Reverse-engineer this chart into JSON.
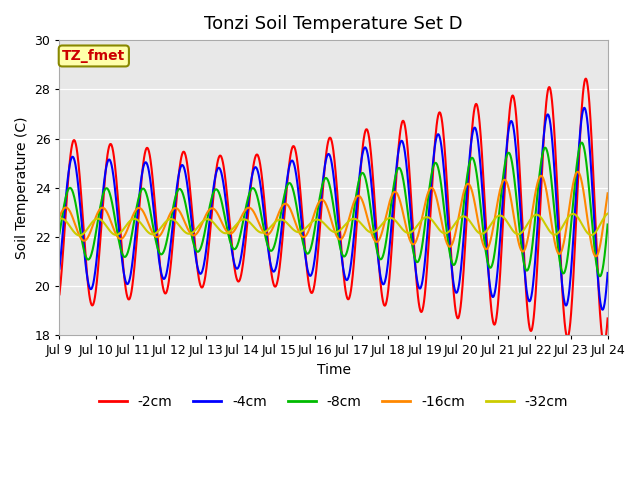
{
  "title": "Tonzi Soil Temperature Set D",
  "xlabel": "Time",
  "ylabel": "Soil Temperature (C)",
  "ylim": [
    18,
    30
  ],
  "yticks": [
    18,
    20,
    22,
    24,
    26,
    28,
    30
  ],
  "n_days": 15,
  "start_day": 9,
  "end_day": 24,
  "xtick_labels": [
    "Jul 9",
    "Jul 10",
    "Jul 11",
    "Jul 12",
    "Jul 13",
    "Jul 14",
    "Jul 15",
    "Jul 16",
    "Jul 17",
    "Jul 18",
    "Jul 19",
    "Jul 20",
    "Jul 21",
    "Jul 22",
    "Jul 23",
    "Jul 24"
  ],
  "series_colors": [
    "#ff0000",
    "#0000ff",
    "#00bb00",
    "#ff8800",
    "#cccc00"
  ],
  "series_labels": [
    "-2cm",
    "-4cm",
    "-8cm",
    "-16cm",
    "-32cm"
  ],
  "line_width": 1.5,
  "fig_bg": "#ffffff",
  "plot_bg": "#e8e8e8",
  "grid_color": "#ffffff",
  "annotation_text": "TZ_fmet",
  "annotation_bg": "#ffffaa",
  "annotation_fc": "#cc0000",
  "annotation_ec": "#888800",
  "title_fontsize": 13,
  "label_fontsize": 10,
  "tick_fontsize": 9
}
